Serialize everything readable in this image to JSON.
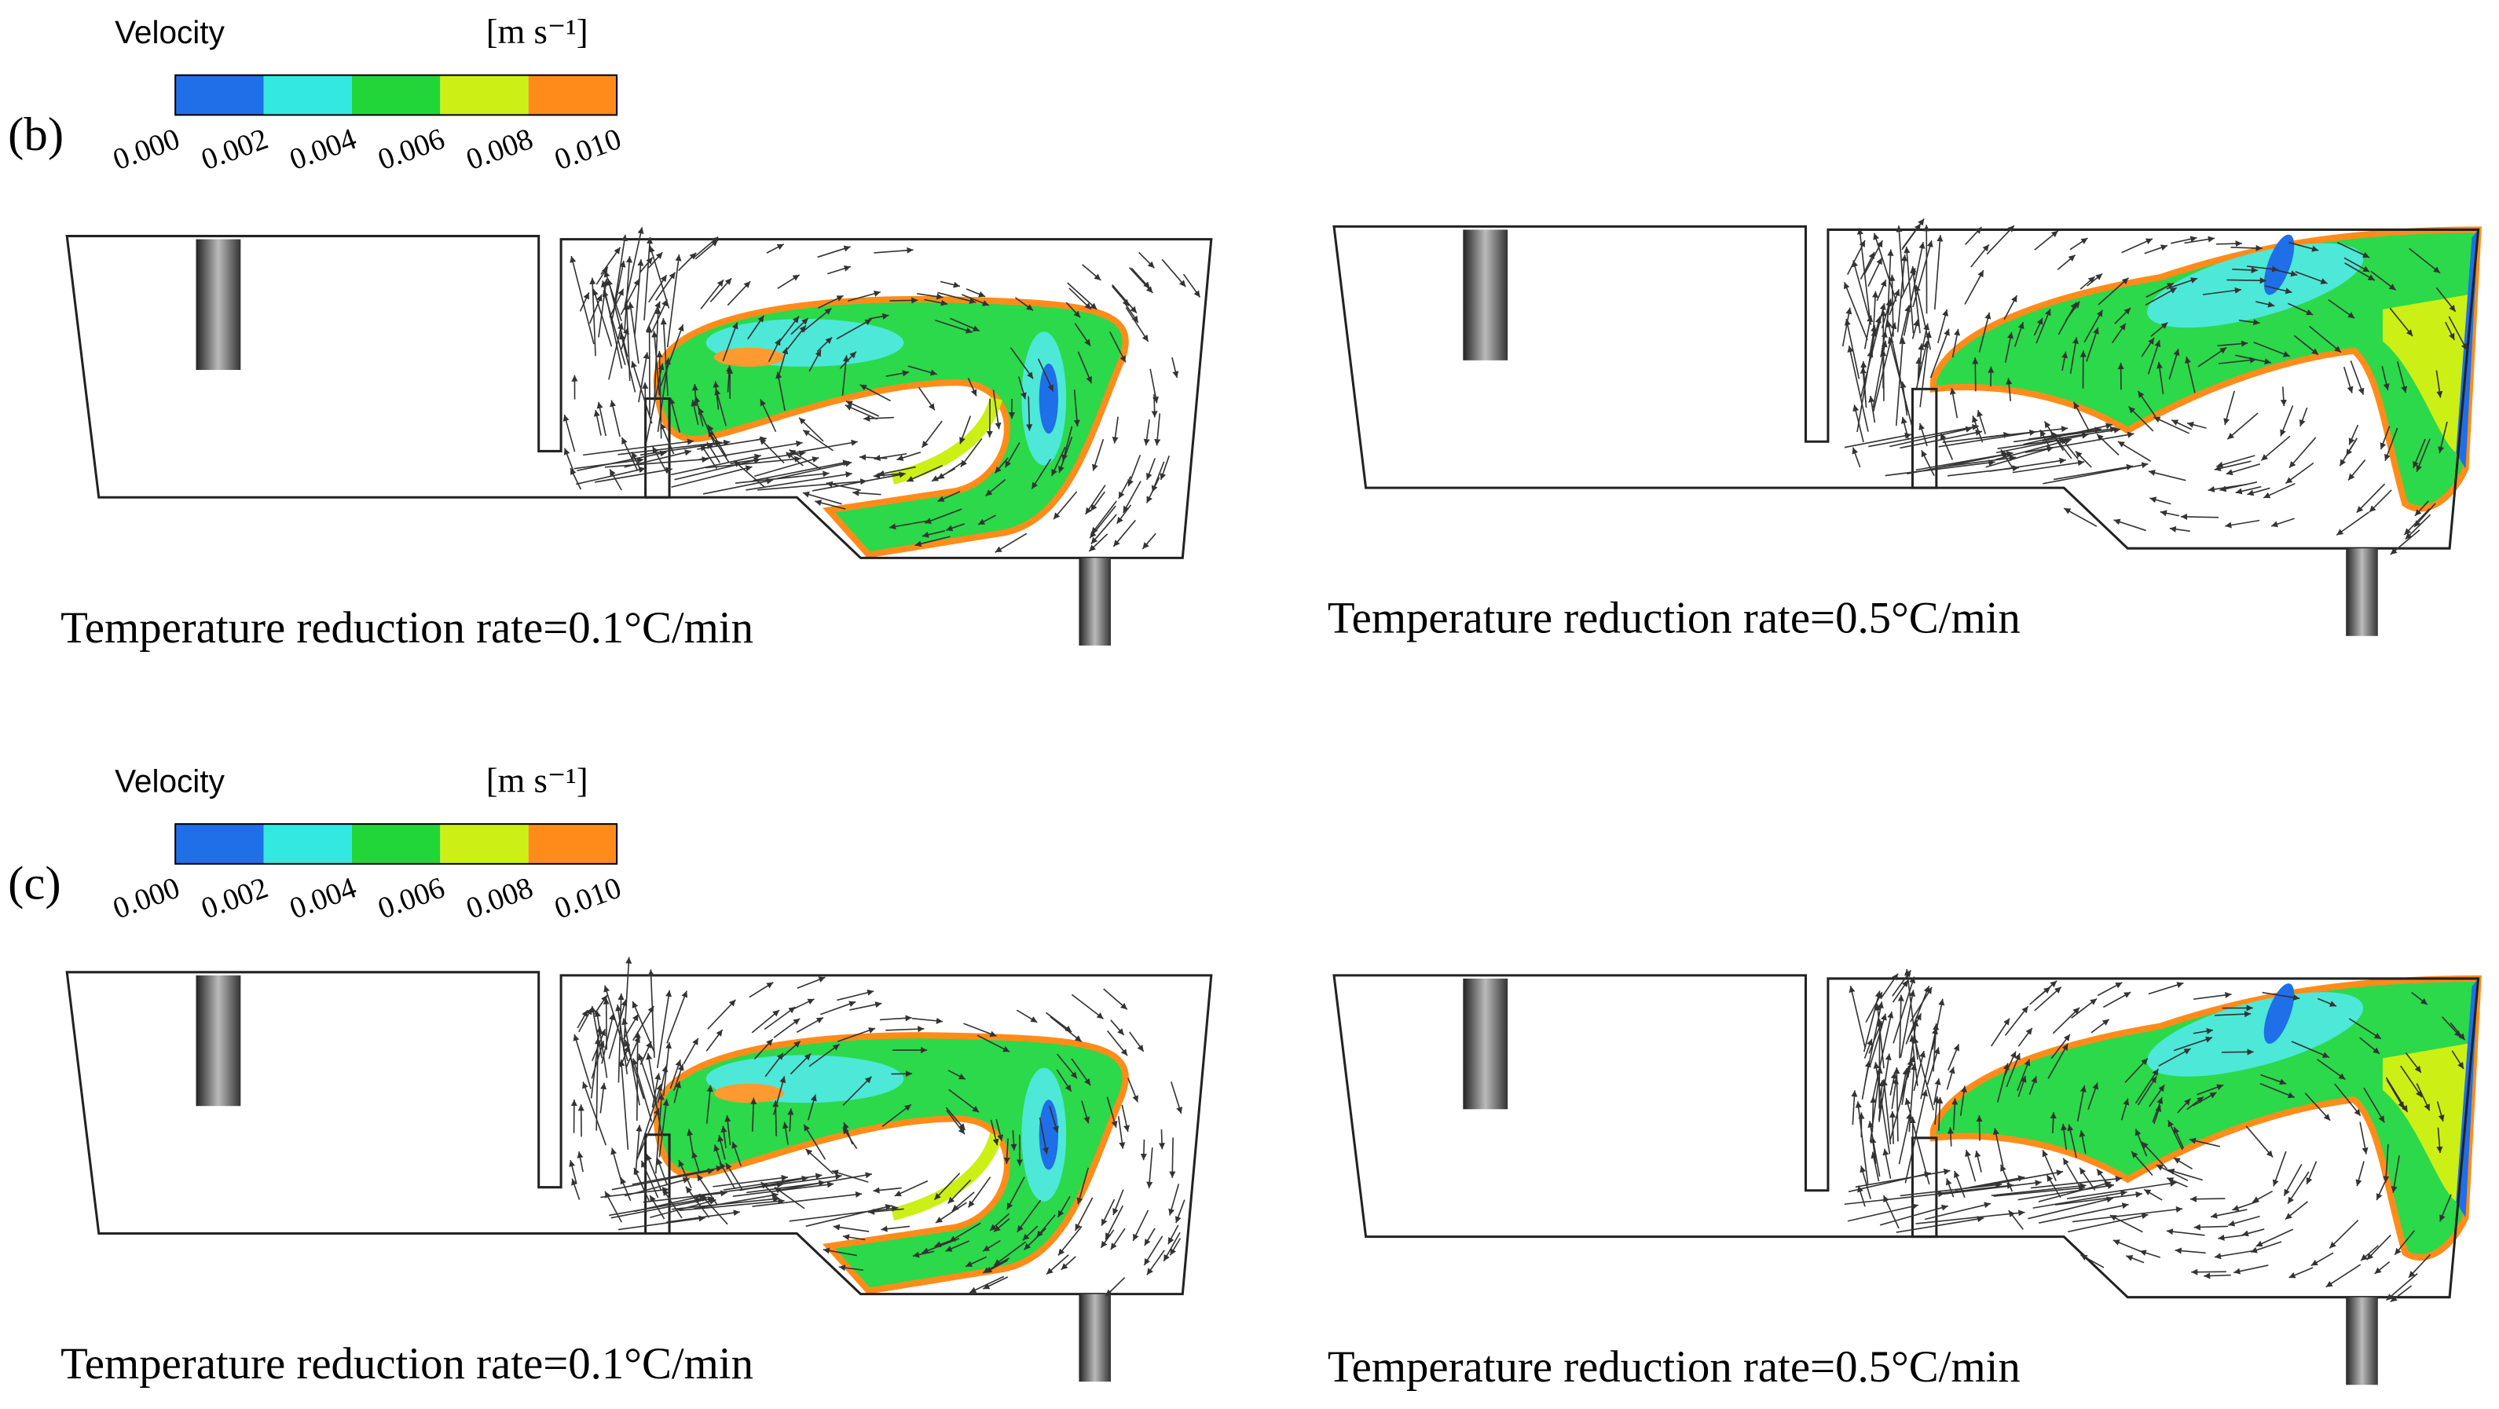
{
  "panels": [
    {
      "label": "(b)",
      "legend": {
        "title": "Velocity",
        "unit": "[m s⁻¹]",
        "ticks": [
          "0.000",
          "0.002",
          "0.004",
          "0.006",
          "0.008",
          "0.010"
        ]
      },
      "plots": [
        {
          "caption": "Temperature reduction rate=0.1°C/min"
        },
        {
          "caption": "Temperature reduction rate=0.5°C/min"
        }
      ]
    },
    {
      "label": "(c)",
      "legend": {
        "title": "Velocity",
        "unit": "[m s⁻¹]",
        "ticks": [
          "0.000",
          "0.002",
          "0.004",
          "0.006",
          "0.008",
          "0.010"
        ]
      },
      "plots": [
        {
          "caption": "Temperature reduction rate=0.1°C/min"
        },
        {
          "caption": "Temperature reduction rate=0.5°C/min"
        }
      ]
    }
  ]
}
